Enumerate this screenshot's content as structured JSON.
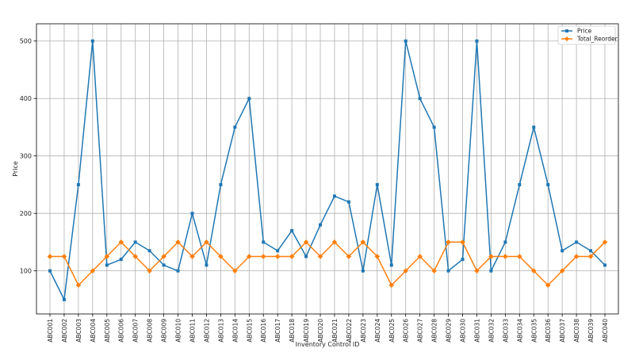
{
  "chart_data": {
    "type": "line",
    "title": "",
    "xlabel": "Inventory Control ID",
    "ylabel": "Price",
    "ylim": [
      25,
      530
    ],
    "yticks": [
      100,
      200,
      300,
      400,
      500
    ],
    "grid": true,
    "legend_position": "top-right",
    "categories": [
      "ABC001",
      "ABC002",
      "ABC003",
      "ABC004",
      "ABC005",
      "ABC006",
      "ABC007",
      "ABC008",
      "ABC009",
      "ABC010",
      "ABC011",
      "ABC012",
      "ABC013",
      "ABC014",
      "ABC015",
      "ABC016",
      "ABC017",
      "ABC018",
      "ABC019",
      "ABC020",
      "ABC021",
      "ABC022",
      "ABC023",
      "ABC024",
      "ABC025",
      "ABC026",
      "ABC027",
      "ABC028",
      "ABC029",
      "ABC030",
      "ABC031",
      "ABC032",
      "ABC033",
      "ABC034",
      "ABC035",
      "ABC036",
      "ABC037",
      "ABC038",
      "ABC039",
      "ABC040"
    ],
    "series": [
      {
        "name": "Price",
        "color": "#1f77b4",
        "marker": "square",
        "values": [
          100,
          50,
          250,
          500,
          110,
          120,
          150,
          135,
          110,
          100,
          200,
          110,
          250,
          350,
          400,
          150,
          135,
          170,
          125,
          180,
          230,
          220,
          100,
          250,
          110,
          500,
          400,
          350,
          100,
          120,
          500,
          100,
          150,
          250,
          350,
          250,
          135,
          150,
          135,
          110
        ]
      },
      {
        "name": "Total_Reorder",
        "color": "#ff7f0e",
        "marker": "diamond",
        "values": [
          125,
          125,
          75,
          100,
          125,
          150,
          125,
          100,
          125,
          150,
          125,
          150,
          125,
          100,
          125,
          125,
          125,
          125,
          150,
          125,
          150,
          125,
          150,
          125,
          75,
          100,
          125,
          100,
          150,
          150,
          100,
          125,
          125,
          125,
          100,
          75,
          100,
          125,
          125,
          150
        ]
      }
    ]
  }
}
